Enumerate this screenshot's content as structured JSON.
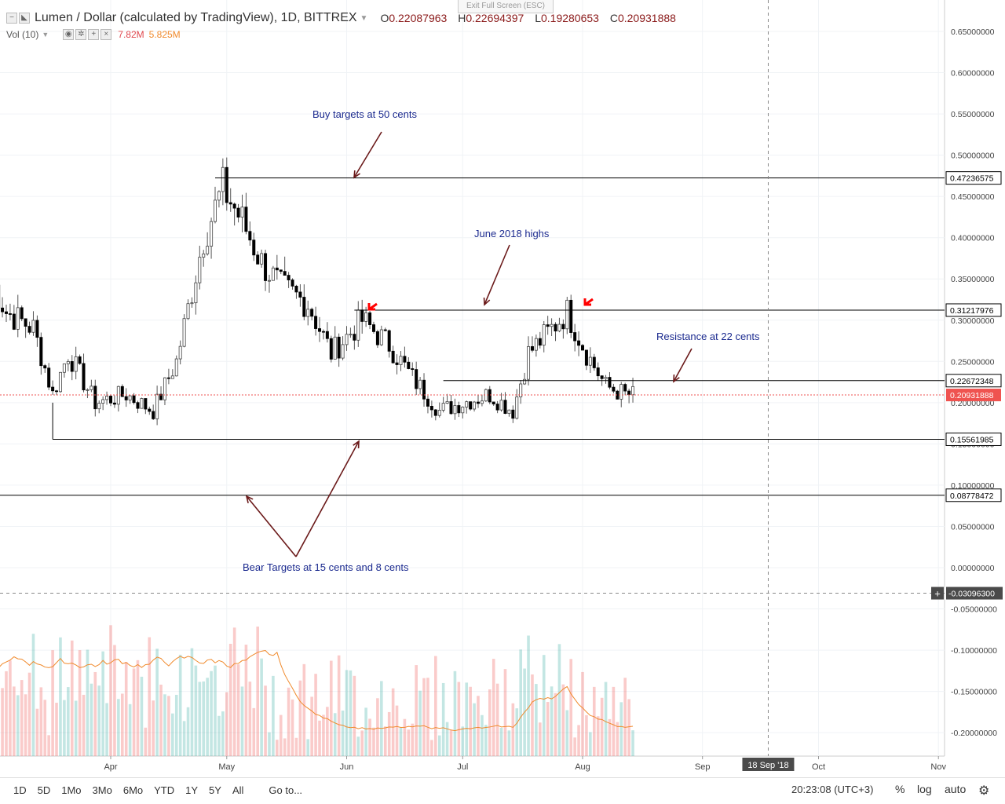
{
  "header": {
    "symbol": "Lumen / Dollar (calculated by TradingView), 1D, BITTREX",
    "open_label": "O",
    "open": "0.22087963",
    "high_label": "H",
    "high": "0.22694397",
    "low_label": "L",
    "low": "0.19280653",
    "close_label": "C",
    "close": "0.20931888"
  },
  "volume_indicator": {
    "label": "Vol (10)",
    "value1": "7.82M",
    "value2": "5.825M"
  },
  "exit_fullscreen": "Exit Full Screen (ESC)",
  "annotations": {
    "buy_targets": "Buy targets at 50 cents",
    "june_highs": "June 2018 highs",
    "resistance": "Resistance at 22 cents",
    "bear_targets": "Bear Targets at 15 cents and 8 cents"
  },
  "price_labels": {
    "l1": "0.47236575",
    "l2": "0.31217976",
    "l3": "0.22672348",
    "current": "0.20931888",
    "l4": "0.15561985",
    "l5": "0.08778472",
    "crosshair": "-0.03096300"
  },
  "crosshair_date": "18 Sep '18",
  "toolbar": {
    "ranges": [
      "1D",
      "5D",
      "1Mo",
      "3Mo",
      "6Mo",
      "YTD",
      "1Y",
      "5Y",
      "All"
    ],
    "goto": "Go to...",
    "time": "20:23:08 (UTC+3)",
    "percent": "%",
    "log": "log",
    "auto": "auto"
  },
  "colors": {
    "up": "#26a69a",
    "down": "#ef5350",
    "annotation": "#1b2a8f",
    "arrow": "#6b1a1a"
  },
  "chart_data": {
    "type": "candlestick",
    "title": "Lumen / Dollar (calculated by TradingView), 1D, BITTREX",
    "interval": "1D",
    "x_range": [
      "2018-03-01",
      "2018-11-01"
    ],
    "y_range": [
      -0.22,
      0.68
    ],
    "y_ticks": [
      "0.65000000",
      "0.60000000",
      "0.55000000",
      "0.50000000",
      "0.45000000",
      "0.40000000",
      "0.35000000",
      "0.30000000",
      "0.25000000",
      "0.20000000",
      "0.15000000",
      "0.10000000",
      "0.05000000",
      "0.00000000",
      "-0.05000000",
      "-0.10000000",
      "-0.15000000",
      "-0.20000000"
    ],
    "x_ticks": [
      "Apr",
      "May",
      "Jun",
      "Jul",
      "Aug",
      "Sep",
      "Oct",
      "Nov"
    ],
    "key_close_points": [
      {
        "date": "2018-03-01",
        "close": 0.35
      },
      {
        "date": "2018-03-05",
        "close": 0.31
      },
      {
        "date": "2018-03-12",
        "close": 0.29
      },
      {
        "date": "2018-03-17",
        "close": 0.21
      },
      {
        "date": "2018-03-21",
        "close": 0.26
      },
      {
        "date": "2018-03-28",
        "close": 0.2
      },
      {
        "date": "2018-04-05",
        "close": 0.21
      },
      {
        "date": "2018-04-12",
        "close": 0.19
      },
      {
        "date": "2018-04-18",
        "close": 0.25
      },
      {
        "date": "2018-04-25",
        "close": 0.4
      },
      {
        "date": "2018-04-30",
        "close": 0.46
      },
      {
        "date": "2018-05-05",
        "close": 0.42
      },
      {
        "date": "2018-05-10",
        "close": 0.37
      },
      {
        "date": "2018-05-15",
        "close": 0.34
      },
      {
        "date": "2018-05-22",
        "close": 0.32
      },
      {
        "date": "2018-05-28",
        "close": 0.26
      },
      {
        "date": "2018-06-05",
        "close": 0.3
      },
      {
        "date": "2018-06-12",
        "close": 0.27
      },
      {
        "date": "2018-06-18",
        "close": 0.23
      },
      {
        "date": "2018-06-25",
        "close": 0.19
      },
      {
        "date": "2018-07-01",
        "close": 0.2
      },
      {
        "date": "2018-07-08",
        "close": 0.21
      },
      {
        "date": "2018-07-14",
        "close": 0.19
      },
      {
        "date": "2018-07-18",
        "close": 0.26
      },
      {
        "date": "2018-07-24",
        "close": 0.29
      },
      {
        "date": "2018-07-28",
        "close": 0.31
      },
      {
        "date": "2018-08-02",
        "close": 0.26
      },
      {
        "date": "2018-08-07",
        "close": 0.22
      },
      {
        "date": "2018-08-12",
        "close": 0.21
      },
      {
        "date": "2018-08-14",
        "close": 0.2093
      }
    ],
    "horizontal_levels": [
      0.47236575,
      0.31217976,
      0.22672348,
      0.15561985,
      0.08778472
    ],
    "current_price": 0.20931888,
    "volume_series": {
      "name": "Vol (10)",
      "moving_average": true
    }
  }
}
